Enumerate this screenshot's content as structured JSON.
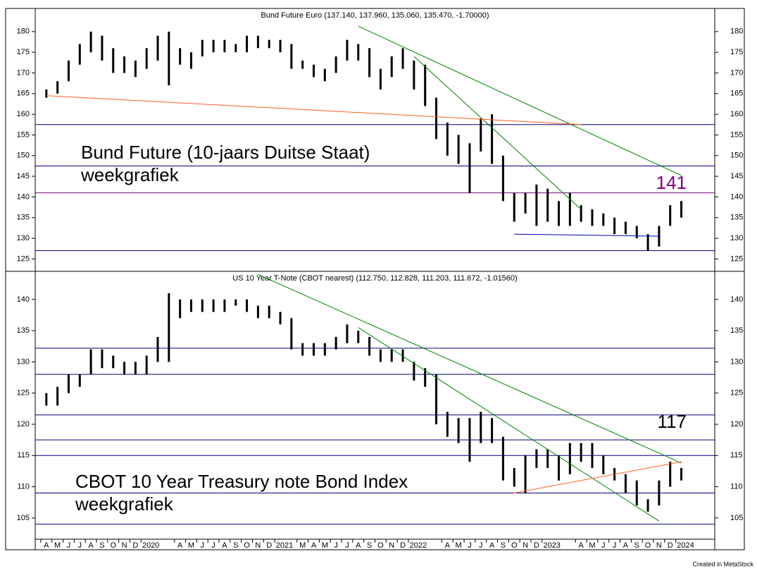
{
  "chart_data": [
    {
      "type": "ohlc",
      "title": "Bund Future Euro (137.140, 137.960, 135.060, 135.470, -1.70000)",
      "annotations": [
        "Bund Future (10-jaars Duitse Staat)",
        "weekgrafiek",
        "141"
      ],
      "x": [
        "2019-04",
        "2019-05",
        "2019-06",
        "2019-07",
        "2019-08",
        "2019-09",
        "2019-10",
        "2019-11",
        "2019-12",
        "2020-01",
        "2020-02",
        "2020-03",
        "2020-04",
        "2020-05",
        "2020-06",
        "2020-07",
        "2020-08",
        "2020-09",
        "2020-10",
        "2020-11",
        "2020-12",
        "2021-01",
        "2021-02",
        "2021-03",
        "2021-04",
        "2021-05",
        "2021-06",
        "2021-07",
        "2021-08",
        "2021-09",
        "2021-10",
        "2021-11",
        "2021-12",
        "2022-01",
        "2022-02",
        "2022-03",
        "2022-04",
        "2022-05",
        "2022-06",
        "2022-07",
        "2022-08",
        "2022-09",
        "2022-10",
        "2022-11",
        "2022-12",
        "2023-01",
        "2023-02",
        "2023-03",
        "2023-04",
        "2023-05",
        "2023-06",
        "2023-07",
        "2023-08",
        "2023-09",
        "2023-10",
        "2023-11",
        "2023-12",
        "2024-01"
      ],
      "high": [
        166,
        168,
        173,
        177,
        180,
        179,
        176,
        174,
        173,
        176,
        179,
        180,
        176,
        175,
        178,
        178,
        178,
        177,
        179,
        179,
        178,
        178,
        177,
        173,
        172,
        171,
        174,
        178,
        177,
        176,
        171,
        174,
        176,
        173,
        172,
        164,
        158,
        155,
        153,
        159,
        160,
        150,
        141,
        141,
        143,
        142,
        139,
        141,
        138,
        137,
        136,
        135,
        134,
        133,
        131,
        133,
        138,
        139
      ],
      "low": [
        164,
        165,
        168,
        172,
        175,
        173,
        170,
        170,
        169,
        171,
        173,
        167,
        172,
        171,
        174,
        175,
        175,
        175,
        175,
        176,
        176,
        175,
        171,
        171,
        169,
        168,
        170,
        173,
        173,
        169,
        166,
        169,
        171,
        166,
        162,
        154,
        150,
        148,
        141,
        151,
        148,
        139,
        134,
        136,
        133,
        134,
        133,
        133,
        134,
        133,
        133,
        131,
        131,
        130,
        127,
        128,
        133,
        135
      ],
      "color": "#000000",
      "xlim": [
        "2019-03",
        "2024-04"
      ],
      "ylim": [
        122,
        185.6
      ],
      "yticks": [
        125,
        130,
        135,
        140,
        145,
        150,
        155,
        160,
        165,
        170,
        175,
        180
      ],
      "hlines": [
        {
          "value": 157.5,
          "color": "#000080"
        },
        {
          "value": 147.5,
          "color": "#000080"
        },
        {
          "value": 141,
          "color": "#800080"
        },
        {
          "value": 127,
          "color": "#000080"
        }
      ],
      "trendlines": [
        {
          "x": [
            "2021-08",
            "2024-01"
          ],
          "y": [
            181.3,
            145.2
          ],
          "color": "#008000"
        },
        {
          "x": [
            "2022-01",
            "2023-04"
          ],
          "y": [
            174,
            137
          ],
          "color": "#008000"
        },
        {
          "x": [
            "2019-04",
            "2023-04"
          ],
          "y": [
            164.5,
            157.5
          ],
          "color": "#ff6020"
        },
        {
          "x": [
            "2022-10",
            "2023-11"
          ],
          "y": [
            131,
            130.5
          ],
          "color": "#0000c0"
        }
      ]
    },
    {
      "type": "ohlc",
      "title": "US 10 Year T-Note (CBOT nearest) (112.750, 112.828, 111.203, 111.672, -1.01560)",
      "annotations": [
        "CBOT 10 Year Treasury note Bond Index",
        "weekgrafiek",
        "117"
      ],
      "x": [
        "2019-04",
        "2019-05",
        "2019-06",
        "2019-07",
        "2019-08",
        "2019-09",
        "2019-10",
        "2019-11",
        "2019-12",
        "2020-01",
        "2020-02",
        "2020-03",
        "2020-04",
        "2020-05",
        "2020-06",
        "2020-07",
        "2020-08",
        "2020-09",
        "2020-10",
        "2020-11",
        "2020-12",
        "2021-01",
        "2021-02",
        "2021-03",
        "2021-04",
        "2021-05",
        "2021-06",
        "2021-07",
        "2021-08",
        "2021-09",
        "2021-10",
        "2021-11",
        "2021-12",
        "2022-01",
        "2022-02",
        "2022-03",
        "2022-04",
        "2022-05",
        "2022-06",
        "2022-07",
        "2022-08",
        "2022-09",
        "2022-10",
        "2022-11",
        "2022-12",
        "2023-01",
        "2023-02",
        "2023-03",
        "2023-04",
        "2023-05",
        "2023-06",
        "2023-07",
        "2023-08",
        "2023-09",
        "2023-10",
        "2023-11",
        "2023-12",
        "2024-01"
      ],
      "high": [
        125,
        126,
        128,
        128,
        132,
        132,
        131,
        130,
        130,
        131,
        134,
        141,
        140,
        140,
        140,
        140,
        140,
        140,
        140,
        139,
        139,
        138,
        137,
        133,
        133,
        133,
        134,
        136,
        135,
        134,
        132,
        132,
        132,
        130,
        129,
        128,
        122,
        121,
        121,
        122,
        121,
        118,
        113,
        115,
        116,
        116,
        115,
        117,
        117,
        117,
        115,
        113,
        112,
        111,
        108,
        111,
        114,
        113
      ],
      "low": [
        123,
        123,
        125,
        126,
        128,
        129,
        129,
        128,
        128,
        128,
        130,
        130,
        137,
        138,
        138,
        138,
        138,
        139,
        138,
        137,
        137,
        136,
        132,
        131,
        131,
        131,
        132,
        133,
        133,
        131,
        130,
        130,
        130,
        127,
        126,
        120,
        118,
        117,
        114,
        117,
        117,
        111,
        110,
        109,
        113,
        113,
        111,
        112,
        114,
        113,
        112,
        111,
        109,
        107,
        106,
        107,
        110,
        111
      ],
      "color": "#000000",
      "xlim": [
        "2019-03",
        "2024-04"
      ],
      "ylim": [
        101.6,
        144.5
      ],
      "yticks": [
        105,
        110,
        115,
        120,
        125,
        130,
        135,
        140
      ],
      "hlines": [
        {
          "value": 132.2,
          "color": "#000080"
        },
        {
          "value": 128,
          "color": "#000080"
        },
        {
          "value": 121.5,
          "color": "#000080"
        },
        {
          "value": 117.5,
          "color": "#000080"
        },
        {
          "value": 115,
          "color": "#000080"
        },
        {
          "value": 109,
          "color": "#000080"
        },
        {
          "value": 104,
          "color": "#000080"
        }
      ],
      "trendlines": [
        {
          "x": [
            "2020-11",
            "2024-01"
          ],
          "y": [
            144,
            113.8
          ],
          "color": "#008000"
        },
        {
          "x": [
            "2021-08",
            "2023-11"
          ],
          "y": [
            135.5,
            104.5
          ],
          "color": "#008000"
        },
        {
          "x": [
            "2022-10",
            "2024-01"
          ],
          "y": [
            109,
            114
          ],
          "color": "#ff6020"
        }
      ],
      "xticks": [
        {
          "value": "2019-04",
          "label": "A"
        },
        {
          "value": "2019-05",
          "label": "M"
        },
        {
          "value": "2019-06",
          "label": "J"
        },
        {
          "value": "2019-07",
          "label": "J"
        },
        {
          "value": "2019-08",
          "label": "A"
        },
        {
          "value": "2019-09",
          "label": "S"
        },
        {
          "value": "2019-10",
          "label": "O"
        },
        {
          "value": "2019-11",
          "label": "N"
        },
        {
          "value": "2019-12",
          "label": "D"
        },
        {
          "value": "2020-01",
          "label": "2020"
        },
        {
          "value": "2020-04",
          "label": "A"
        },
        {
          "value": "2020-05",
          "label": "M"
        },
        {
          "value": "2020-06",
          "label": "J"
        },
        {
          "value": "2020-07",
          "label": "J"
        },
        {
          "value": "2020-08",
          "label": "A"
        },
        {
          "value": "2020-09",
          "label": "S"
        },
        {
          "value": "2020-10",
          "label": "O"
        },
        {
          "value": "2020-11",
          "label": "N"
        },
        {
          "value": "2020-12",
          "label": "D"
        },
        {
          "value": "2021-01",
          "label": "2021"
        },
        {
          "value": "2021-03",
          "label": "M"
        },
        {
          "value": "2021-04",
          "label": "A"
        },
        {
          "value": "2021-05",
          "label": "M"
        },
        {
          "value": "2021-06",
          "label": "J"
        },
        {
          "value": "2021-07",
          "label": "J"
        },
        {
          "value": "2021-08",
          "label": "A"
        },
        {
          "value": "2021-09",
          "label": "S"
        },
        {
          "value": "2021-10",
          "label": "O"
        },
        {
          "value": "2021-11",
          "label": "N"
        },
        {
          "value": "2021-12",
          "label": "D"
        },
        {
          "value": "2022-01",
          "label": "2022"
        },
        {
          "value": "2022-04",
          "label": "A"
        },
        {
          "value": "2022-05",
          "label": "M"
        },
        {
          "value": "2022-06",
          "label": "J"
        },
        {
          "value": "2022-07",
          "label": "J"
        },
        {
          "value": "2022-08",
          "label": "A"
        },
        {
          "value": "2022-09",
          "label": "S"
        },
        {
          "value": "2022-10",
          "label": "O"
        },
        {
          "value": "2022-11",
          "label": "N"
        },
        {
          "value": "2022-12",
          "label": "D"
        },
        {
          "value": "2023-01",
          "label": "2023"
        },
        {
          "value": "2023-04",
          "label": "A"
        },
        {
          "value": "2023-05",
          "label": "M"
        },
        {
          "value": "2023-06",
          "label": "J"
        },
        {
          "value": "2023-07",
          "label": "J"
        },
        {
          "value": "2023-08",
          "label": "A"
        },
        {
          "value": "2023-09",
          "label": "S"
        },
        {
          "value": "2023-10",
          "label": "O"
        },
        {
          "value": "2023-11",
          "label": "N"
        },
        {
          "value": "2023-12",
          "label": "D"
        },
        {
          "value": "2024-01",
          "label": "2024"
        }
      ]
    }
  ],
  "footer": "Created in MetaStock"
}
